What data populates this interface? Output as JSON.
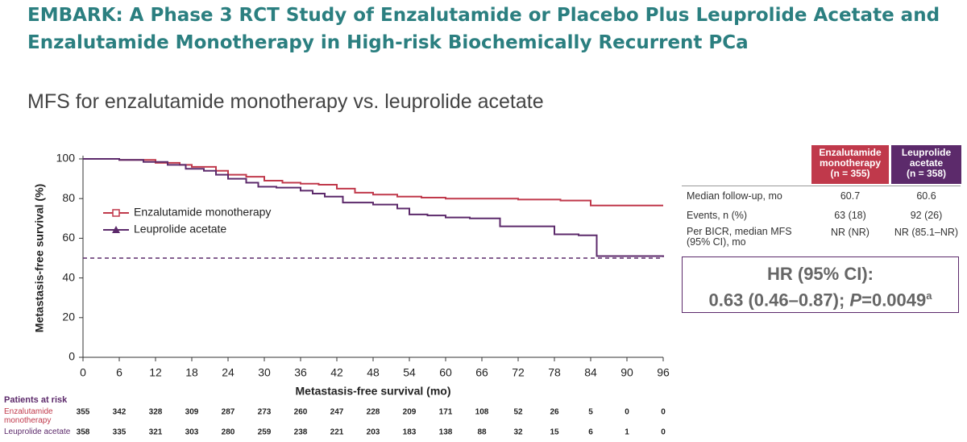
{
  "header": {
    "title_line1": "EMBARK: A Phase 3 RCT Study of Enzalutamide or Placebo Plus Leuprolide Acetate and",
    "title_line2": "Enzalutamide Monotherapy in High-risk Biochemically Recurrent PCa",
    "subtitle": "MFS for enzalutamide monotherapy vs. leuprolide acetate"
  },
  "chart_data": {
    "type": "step",
    "xlabel": "Metastasis-free survival (mo)",
    "ylabel": "Metastasis-free survival (%)",
    "xlim": [
      0,
      96
    ],
    "ylim": [
      0,
      100
    ],
    "xticks": [
      0,
      6,
      12,
      18,
      24,
      30,
      36,
      42,
      48,
      54,
      60,
      66,
      72,
      78,
      84,
      90,
      96
    ],
    "yticks": [
      0,
      20,
      40,
      60,
      80,
      100
    ],
    "reference_line": 50,
    "legend": "upper-left",
    "series": [
      {
        "name": "Enzalutamide monotherapy",
        "color": "#c0394b",
        "marker": "square",
        "x": [
          0,
          6,
          12,
          16,
          18,
          22,
          24,
          27,
          30,
          33,
          36,
          39,
          42,
          45,
          48,
          52,
          56,
          60,
          72,
          79,
          84,
          96
        ],
        "values": [
          100,
          99.5,
          98,
          97,
          96,
          94,
          92,
          91,
          89,
          88,
          87.5,
          87,
          85,
          83,
          82,
          81,
          80.5,
          80,
          79.5,
          79,
          76.5,
          76.5
        ]
      },
      {
        "name": "Leuprolide acetate",
        "color": "#5c2a6b",
        "marker": "triangle",
        "x": [
          0,
          6,
          10,
          14,
          17,
          20,
          22,
          24,
          27,
          29,
          32,
          36,
          38,
          40,
          43,
          48,
          52,
          54,
          57,
          60,
          64,
          69,
          78,
          82,
          85,
          96
        ],
        "values": [
          100,
          99.5,
          98.5,
          97,
          95,
          94,
          92,
          90,
          88,
          86,
          85.5,
          84,
          82.5,
          81,
          78,
          77,
          75,
          72,
          71.5,
          70.5,
          70,
          66,
          62,
          61.5,
          51,
          50.5
        ]
      }
    ]
  },
  "risk_table": {
    "title": "Patients at risk",
    "rows": [
      {
        "name": "Enzalutamide monotherapy",
        "color": "#c0394b",
        "counts": [
          355,
          342,
          328,
          309,
          287,
          273,
          260,
          247,
          228,
          209,
          171,
          108,
          52,
          26,
          5,
          0,
          0
        ]
      },
      {
        "name": "Leuprolide acetate",
        "color": "#5c2a6b",
        "counts": [
          358,
          335,
          321,
          303,
          280,
          259,
          238,
          221,
          203,
          183,
          138,
          88,
          32,
          15,
          6,
          1,
          0
        ]
      }
    ]
  },
  "summary_table": {
    "columns": [
      {
        "name": "Enzalutamide monotherapy",
        "n": "(n = 355)",
        "color": "#c0394b"
      },
      {
        "name": "Leuprolide acetate",
        "n": "(n = 358)",
        "color": "#5c2a6b"
      }
    ],
    "rows": [
      [
        "Median follow-up, mo",
        "60.7",
        "60.6"
      ],
      [
        "Events, n (%)",
        "63 (18)",
        "92 (26)"
      ],
      [
        "Per BICR, median MFS (95% CI), mo",
        "NR (NR)",
        "NR (85.1–NR)"
      ]
    ]
  },
  "hazard_ratio": {
    "title": "HR (95% CI):",
    "estimate": "0.63 (0.46–0.87); ",
    "p_symbol": "P",
    "p_value": "=0.0049",
    "footnote": "a"
  }
}
